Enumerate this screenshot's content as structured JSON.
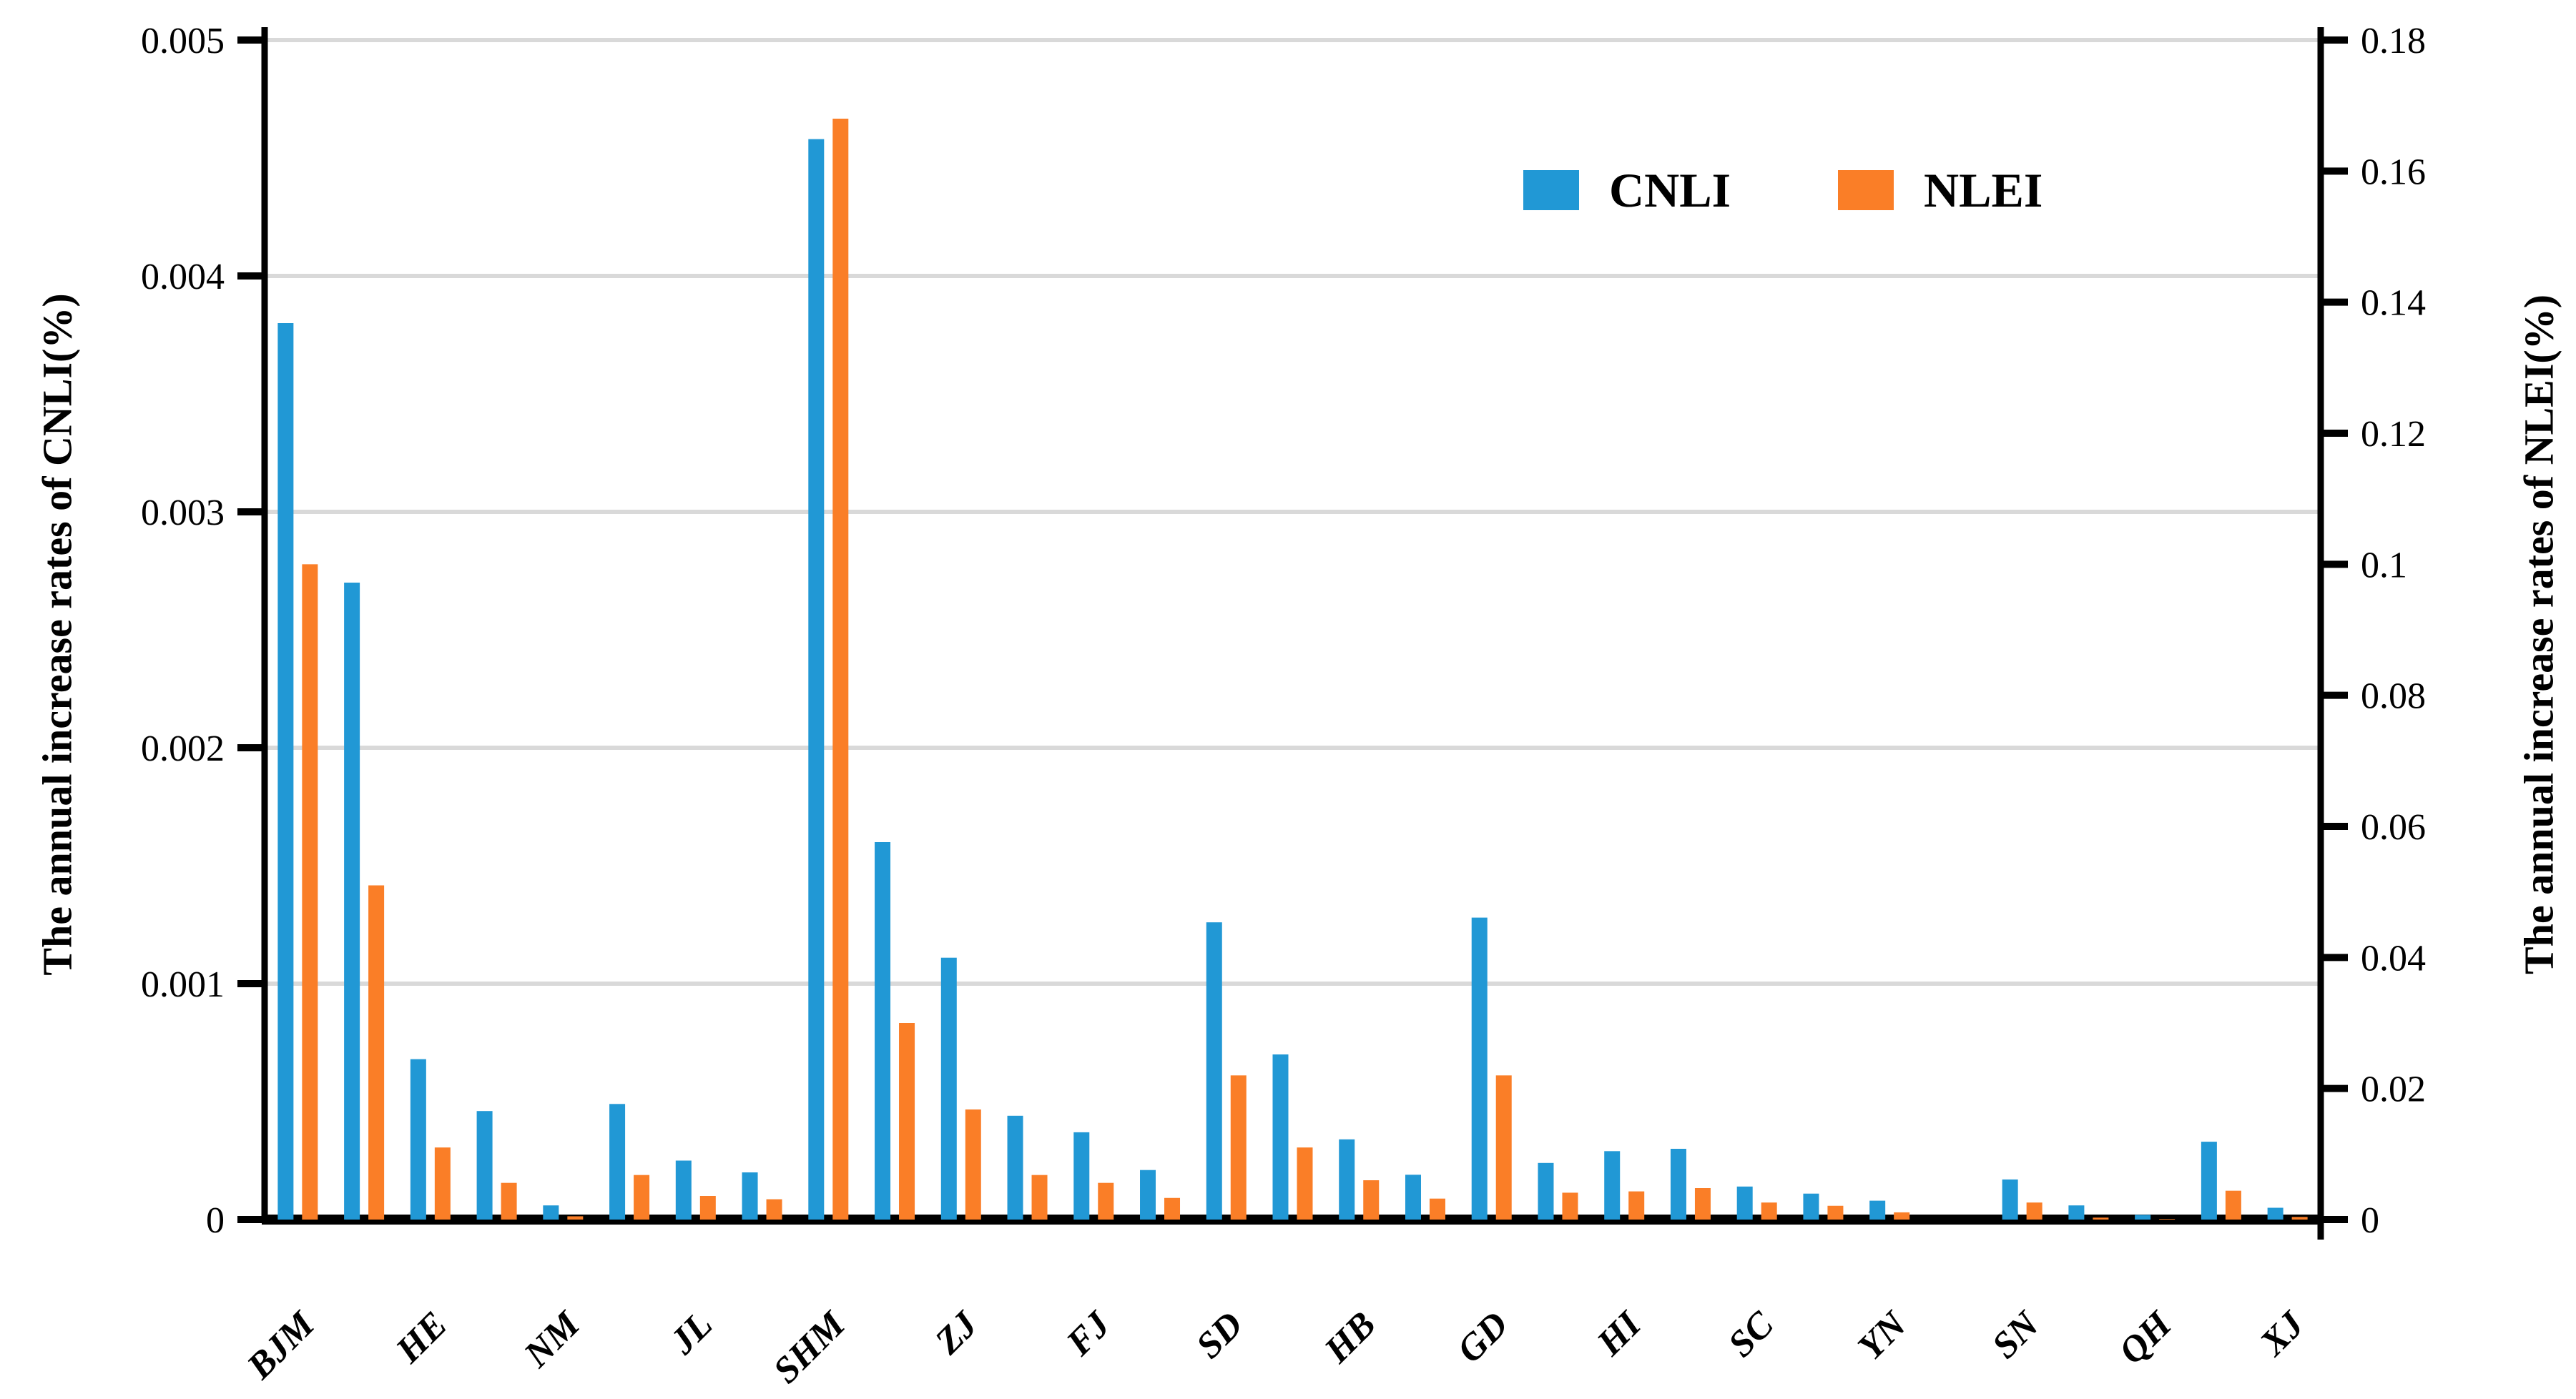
{
  "chart_data": {
    "type": "bar",
    "title": "",
    "categories": [
      "BJM",
      "",
      "HE",
      "",
      "NM",
      "",
      "JL",
      "",
      "SHM",
      "",
      "ZJ",
      "",
      "FJ",
      "",
      "SD",
      "",
      "HB",
      "",
      "GD",
      "",
      "HI",
      "",
      "SC",
      "",
      "YN",
      "",
      "SN",
      "",
      "QH",
      "",
      "XJ"
    ],
    "x_ticks": [
      {
        "i": 0,
        "label": "BJM"
      },
      {
        "i": 2,
        "label": "HE"
      },
      {
        "i": 4,
        "label": "NM"
      },
      {
        "i": 6,
        "label": "JL"
      },
      {
        "i": 8,
        "label": "SHM"
      },
      {
        "i": 10,
        "label": "ZJ"
      },
      {
        "i": 12,
        "label": "FJ"
      },
      {
        "i": 14,
        "label": "SD"
      },
      {
        "i": 16,
        "label": "HB"
      },
      {
        "i": 18,
        "label": "GD"
      },
      {
        "i": 20,
        "label": "HI"
      },
      {
        "i": 22,
        "label": "SC"
      },
      {
        "i": 24,
        "label": "YN"
      },
      {
        "i": 26,
        "label": "SN"
      },
      {
        "i": 28,
        "label": "QH"
      },
      {
        "i": 30,
        "label": "XJ"
      }
    ],
    "series": [
      {
        "name": "CNLI",
        "axis": "left",
        "color": "#2198D5",
        "values": [
          0.0038,
          0.0027,
          0.00068,
          0.00046,
          6e-05,
          0.00049,
          0.00025,
          0.0002,
          0.00458,
          0.0016,
          0.00111,
          0.00044,
          0.00037,
          0.00021,
          0.00126,
          0.0007,
          0.00034,
          0.00019,
          0.00128,
          0.00024,
          0.00029,
          0.0003,
          0.00014,
          0.00011,
          8e-05,
          0.0,
          0.00017,
          6e-05,
          2e-05,
          0.00033,
          5e-05
        ]
      },
      {
        "name": "NLEI",
        "axis": "right",
        "color": "#FA7E27",
        "values": [
          0.1,
          0.051,
          0.011,
          0.0056,
          0.0005,
          0.0068,
          0.0036,
          0.0031,
          0.168,
          0.03,
          0.0168,
          0.0068,
          0.0056,
          0.0033,
          0.022,
          0.011,
          0.006,
          0.0032,
          0.022,
          0.0041,
          0.0043,
          0.0048,
          0.0026,
          0.0021,
          0.0011,
          0.0,
          0.0026,
          0.0003,
          0.0001,
          0.0044,
          0.0004
        ]
      }
    ],
    "left_axis": {
      "label": "The annual increase rates of CNLI(%)",
      "min": 0,
      "max": 0.005,
      "ticks": [
        "0.005",
        "0.004",
        "0.003",
        "0.002",
        "0.001",
        "0"
      ]
    },
    "right_axis": {
      "label": "The annual increase rates of NLEI(%)",
      "min": 0,
      "max": 0.18,
      "ticks": [
        "0.18",
        "0.16",
        "0.14",
        "0.12",
        "0.1",
        "0.08",
        "0.06",
        "0.04",
        "0.02",
        "0"
      ]
    },
    "grid": true,
    "legend_position": "top-right-inside",
    "colors": {
      "grid": "#D9D9D9",
      "axis": "#000000",
      "background": "#FFFFFF"
    }
  },
  "legend": {
    "items": [
      {
        "label": "CNLI",
        "color": "#2198D5"
      },
      {
        "label": "NLEI",
        "color": "#FA7E27"
      }
    ]
  }
}
